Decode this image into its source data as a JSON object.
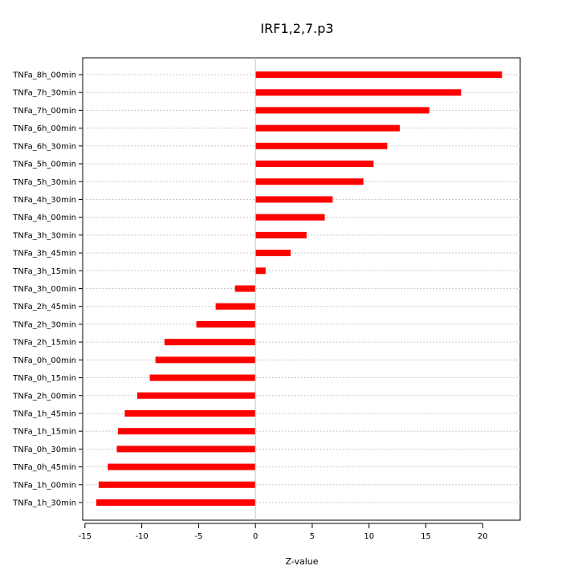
{
  "chart_data": {
    "type": "bar",
    "orientation": "horizontal",
    "title": "IRF1,2,7.p3",
    "xlabel": "Z-value",
    "ylabel": "",
    "xlim": [
      -15.2,
      23.3
    ],
    "xticks": [
      -15,
      -10,
      -5,
      0,
      5,
      10,
      15,
      20
    ],
    "xtick_labels": [
      "-15",
      "-10",
      "-5",
      "0",
      "5",
      "10",
      "15",
      "20"
    ],
    "grid": "horizontal dotted",
    "bar_color": "#ff0000",
    "zero_line_color": "#90ee90",
    "categories": [
      "TNFa_8h_00min",
      "TNFa_7h_30min",
      "TNFa_7h_00min",
      "TNFa_6h_00min",
      "TNFa_6h_30min",
      "TNFa_5h_00min",
      "TNFa_5h_30min",
      "TNFa_4h_30min",
      "TNFa_4h_00min",
      "TNFa_3h_30min",
      "TNFa_3h_45min",
      "TNFa_3h_15min",
      "TNFa_3h_00min",
      "TNFa_2h_45min",
      "TNFa_2h_30min",
      "TNFa_2h_15min",
      "TNFa_0h_00min",
      "TNFa_0h_15min",
      "TNFa_2h_00min",
      "TNFa_1h_45min",
      "TNFa_1h_15min",
      "TNFa_0h_30min",
      "TNFa_0h_45min",
      "TNFa_1h_00min",
      "TNFa_1h_30min"
    ],
    "values": [
      21.7,
      18.1,
      15.3,
      12.7,
      11.6,
      10.4,
      9.5,
      6.8,
      6.1,
      4.5,
      3.1,
      0.9,
      -1.8,
      -3.5,
      -5.2,
      -8.0,
      -8.8,
      -9.3,
      -10.4,
      -11.5,
      -12.1,
      -12.2,
      -13.0,
      -13.8,
      -14.0
    ]
  }
}
